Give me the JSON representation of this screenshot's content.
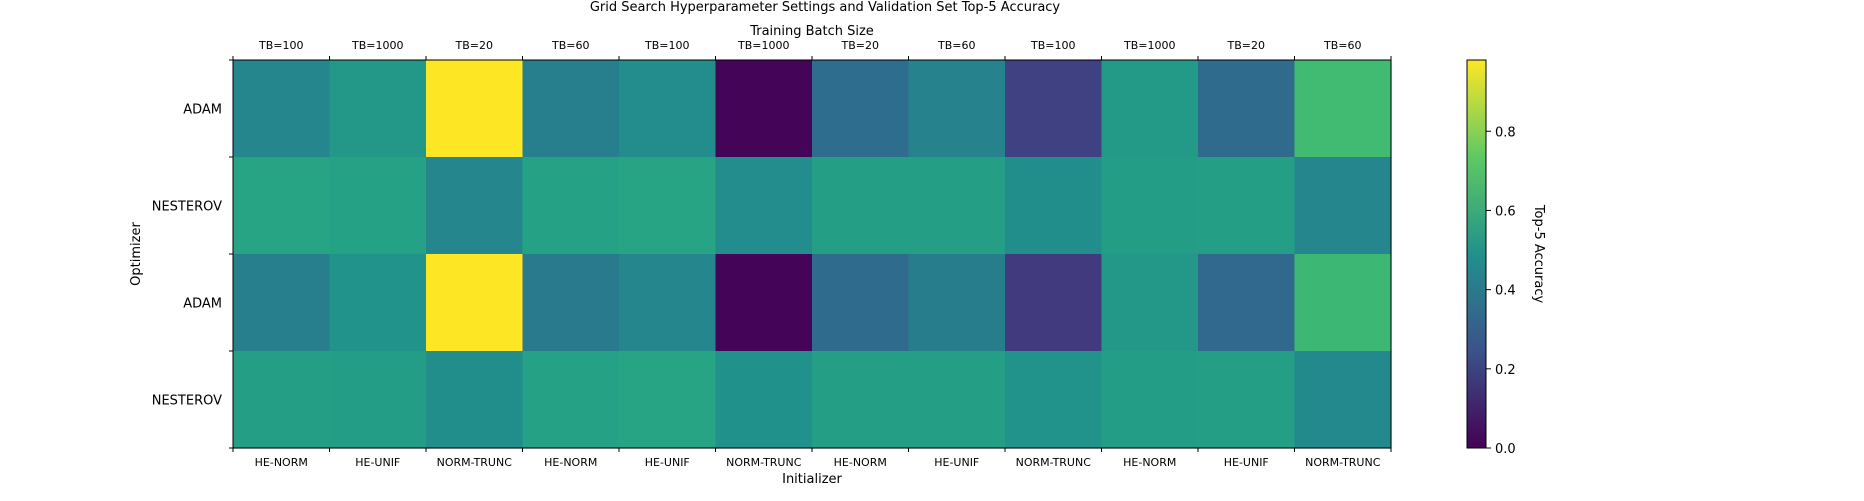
{
  "chart_data": {
    "type": "heatmap",
    "title": "Grid Search Hyperparameter Settings and Validation Set Top-5 Accuracy",
    "top_axis_label": "Training Batch Size",
    "xlabel": "Initializer",
    "ylabel": "Optimizer",
    "colorbar_label": "Top-5 Accuracy",
    "top_categories": [
      "TB=100",
      "TB=1000",
      "TB=20",
      "TB=60",
      "TB=100",
      "TB=1000",
      "TB=20",
      "TB=60",
      "TB=100",
      "TB=1000",
      "TB=20",
      "TB=60"
    ],
    "x_categories": [
      "HE-NORM",
      "HE-UNIF",
      "NORM-TRUNC",
      "HE-NORM",
      "HE-UNIF",
      "NORM-TRUNC",
      "HE-NORM",
      "HE-UNIF",
      "NORM-TRUNC",
      "HE-NORM",
      "HE-UNIF",
      "NORM-TRUNC"
    ],
    "y_categories": [
      "ADAM",
      "NESTEROV",
      "ADAM",
      "NESTEROV"
    ],
    "values": [
      [
        0.45,
        0.52,
        0.98,
        0.42,
        0.47,
        0.01,
        0.35,
        0.43,
        0.2,
        0.53,
        0.34,
        0.67
      ],
      [
        0.57,
        0.56,
        0.45,
        0.56,
        0.57,
        0.47,
        0.55,
        0.55,
        0.48,
        0.54,
        0.55,
        0.45
      ],
      [
        0.42,
        0.5,
        0.98,
        0.4,
        0.45,
        0.01,
        0.34,
        0.41,
        0.18,
        0.52,
        0.33,
        0.66
      ],
      [
        0.55,
        0.54,
        0.48,
        0.56,
        0.57,
        0.49,
        0.55,
        0.55,
        0.5,
        0.54,
        0.55,
        0.46
      ]
    ],
    "colormap": "viridis",
    "vmin": 0.0,
    "vmax": 0.98,
    "colorbar_ticks": [
      "0.0",
      "0.2",
      "0.4",
      "0.6",
      "0.8"
    ]
  }
}
